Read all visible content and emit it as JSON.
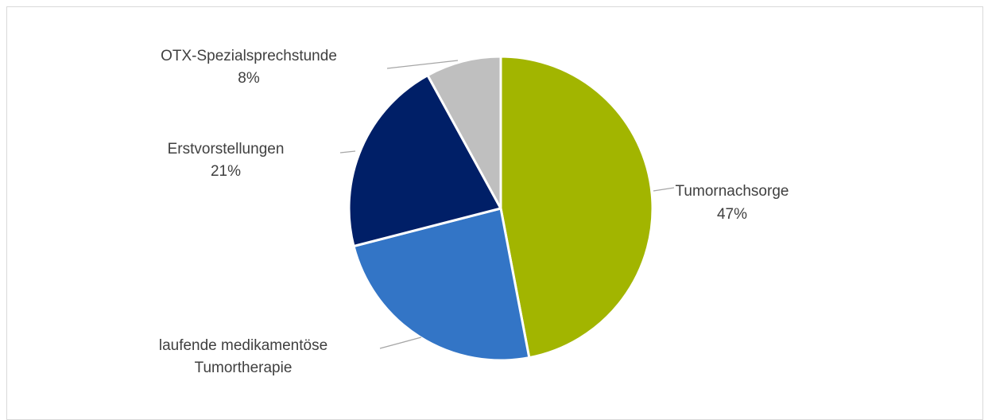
{
  "chart_data": {
    "type": "pie",
    "title": "",
    "slices": [
      {
        "name": "Tumornachsorge",
        "value": 47,
        "label_lines": [
          "Tumornachsorge"
        ],
        "percent_label": "47%",
        "color": "#a2b500"
      },
      {
        "name": "laufende medikamentöse Tumortherapie",
        "value": 24,
        "label_lines": [
          "laufende medikamentöse",
          "Tumortherapie"
        ],
        "percent_label": "",
        "color": "#3375c6"
      },
      {
        "name": "Erstvorstellungen",
        "value": 21,
        "label_lines": [
          "Erstvorstellungen"
        ],
        "percent_label": "21%",
        "color": "#001f67"
      },
      {
        "name": "OTX-Spezialsprechstunde",
        "value": 8,
        "label_lines": [
          "OTX-Spezialsprechstunde"
        ],
        "percent_label": "8%",
        "color": "#bfbfbf"
      }
    ],
    "start_angle": "12 o'clock",
    "direction": "clockwise",
    "legend": "none",
    "slice_border_color": "#ffffff",
    "leader_line_color": "#a6a6a6"
  }
}
